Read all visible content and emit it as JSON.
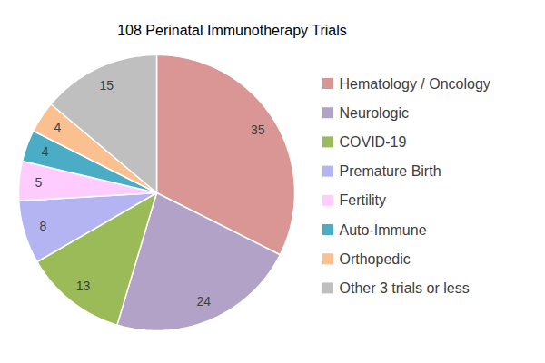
{
  "chart_data": {
    "type": "pie",
    "title": "108 Perinatal Immunotherapy Trials",
    "categories": [
      "Hematology / Oncology",
      "Neurologic",
      "COVID-19",
      "Premature Birth",
      "Fertility",
      "Auto-Immune",
      "Orthopedic",
      "Other 3 trials or less"
    ],
    "values": [
      35,
      24,
      13,
      8,
      5,
      4,
      4,
      15
    ],
    "colors": [
      "#d99694",
      "#b3a2c7",
      "#9bbb59",
      "#b4b4f2",
      "#ffccff",
      "#4bacc6",
      "#fac090",
      "#bfbfbf"
    ],
    "legend": "right",
    "data_labels": true
  }
}
